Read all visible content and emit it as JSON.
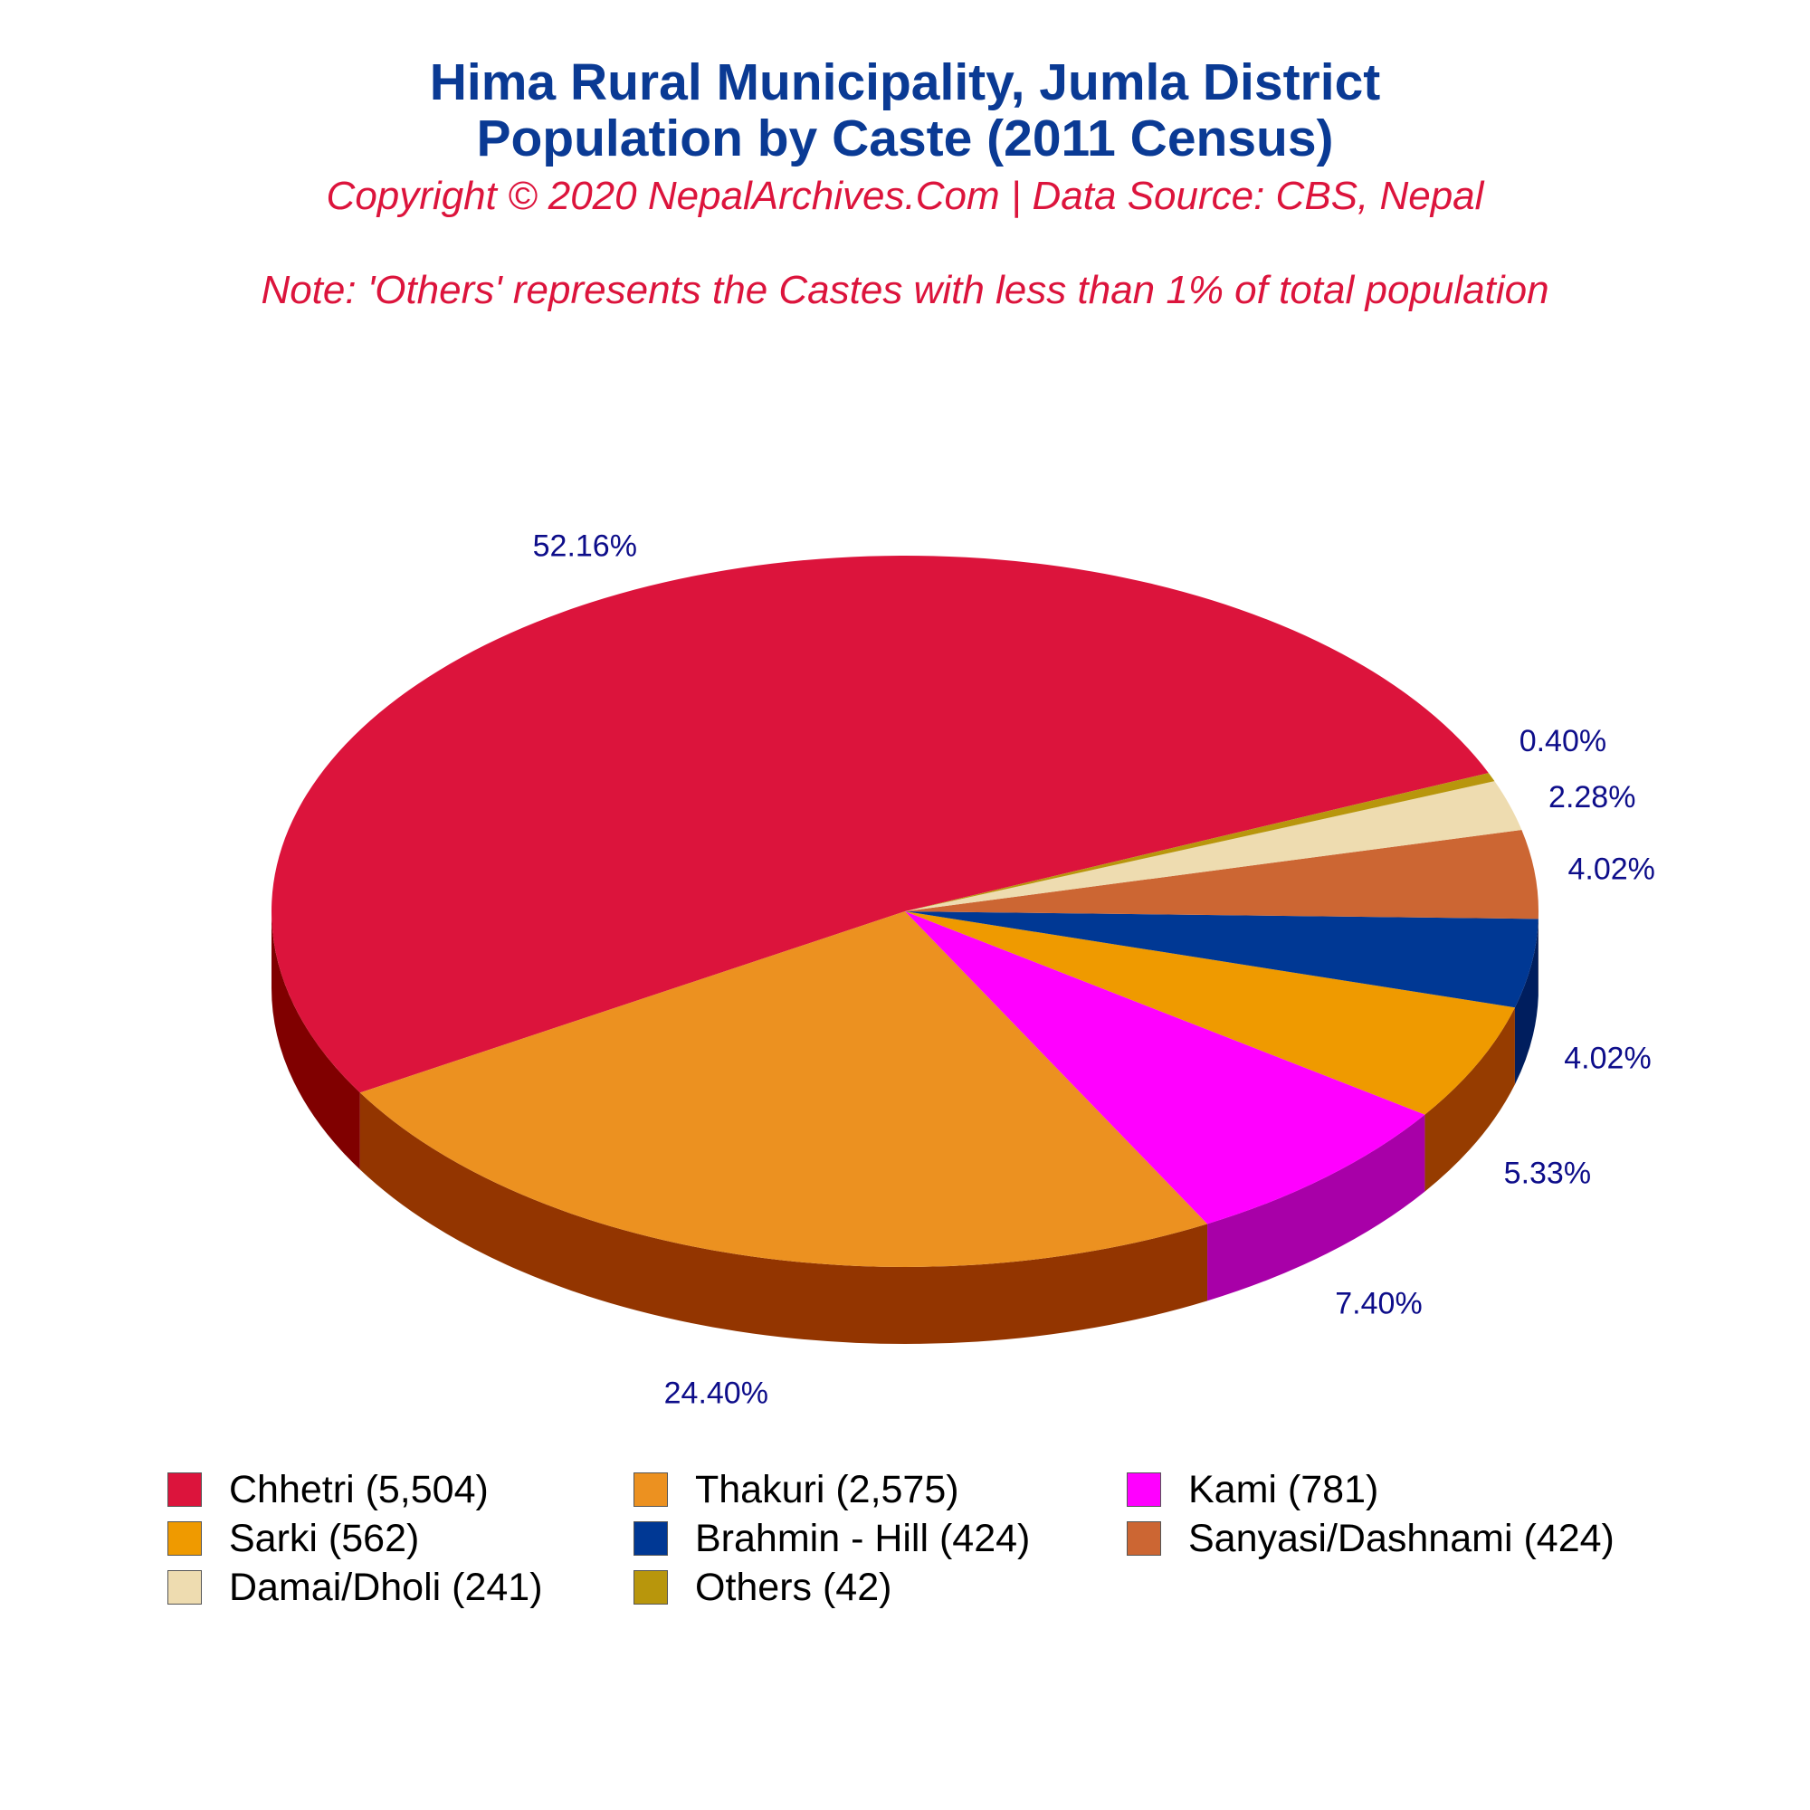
{
  "chart_data": {
    "type": "pie",
    "title": [
      "Hima Rural Municipality, Jumla District",
      "Population by Caste (2011 Census)"
    ],
    "subtitle": "Copyright © 2020 NepalArchives.Com | Data Source: CBS, Nepal",
    "note": "Note: 'Others' represents the Castes with less than 1% of total population",
    "slices": [
      {
        "label": "Chhetri (5,504)",
        "name": "Chhetri",
        "value": 5504,
        "percent_label": "52.16%",
        "color": "#dc143c",
        "side_color": "#800000"
      },
      {
        "label": "Thakuri (2,575)",
        "name": "Thakuri",
        "value": 2575,
        "percent_label": "24.40%",
        "color": "#ec9120",
        "side_color": "#933500"
      },
      {
        "label": "Kami (781)",
        "name": "Kami",
        "value": 781,
        "percent_label": "7.40%",
        "color": "#ff00ff",
        "side_color": "#a800a8"
      },
      {
        "label": "Sarki (562)",
        "name": "Sarki",
        "value": 562,
        "percent_label": "5.33%",
        "color": "#ef9a00",
        "side_color": "#963c00"
      },
      {
        "label": "Brahmin - Hill (424)",
        "name": "Brahmin - Hill",
        "value": 424,
        "percent_label": "4.02%",
        "color": "#003894",
        "side_color": "#001e5e"
      },
      {
        "label": "Sanyasi/Dashnami (424)",
        "name": "Sanyasi/Dashnami",
        "value": 424,
        "percent_label": "4.02%",
        "color": "#cc6633",
        "side_color": "#7a3a1a"
      },
      {
        "label": "Damai/Dholi (241)",
        "name": "Damai/Dholi",
        "value": 241,
        "percent_label": "2.28%",
        "color": "#eedcb0",
        "side_color": "#a89a70"
      },
      {
        "label": "Others (42)",
        "name": "Others",
        "value": 42,
        "percent_label": "0.40%",
        "color": "#b8960c",
        "side_color": "#6b5600"
      }
    ],
    "legend_position": "bottom",
    "legend_columns": 3
  }
}
